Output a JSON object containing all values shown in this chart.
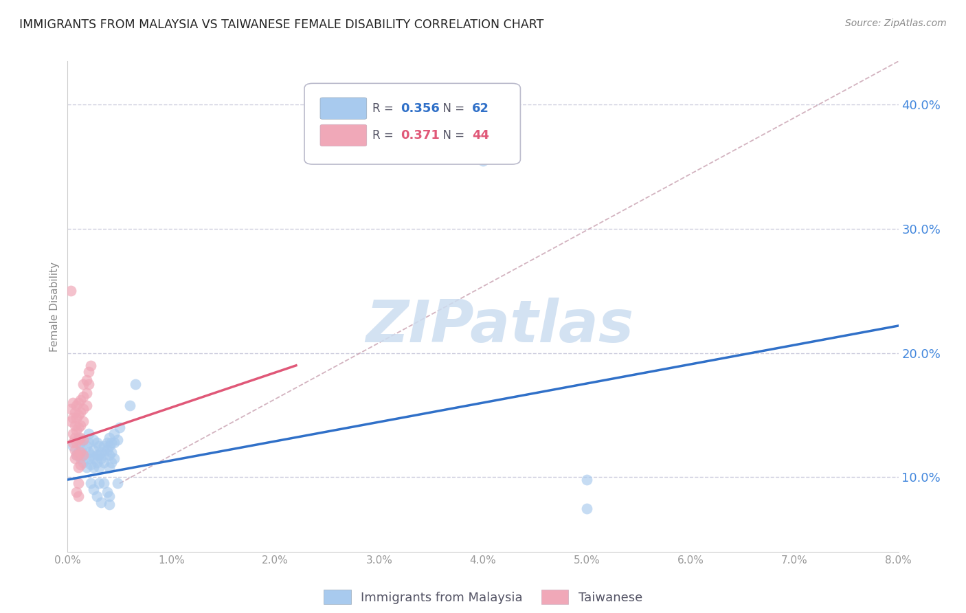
{
  "title": "IMMIGRANTS FROM MALAYSIA VS TAIWANESE FEMALE DISABILITY CORRELATION CHART",
  "source": "Source: ZipAtlas.com",
  "ylabel": "Female Disability",
  "legend_label_blue": "Immigrants from Malaysia",
  "legend_label_pink": "Taiwanese",
  "R_blue": 0.356,
  "N_blue": 62,
  "R_pink": 0.371,
  "N_pink": 44,
  "watermark": "ZIPatlas",
  "xlim": [
    0.0,
    0.08
  ],
  "ylim": [
    0.04,
    0.435
  ],
  "xticks": [
    0.0,
    0.01,
    0.02,
    0.03,
    0.04,
    0.05,
    0.06,
    0.07,
    0.08
  ],
  "xtick_labels": [
    "0.0%",
    "1.0%",
    "2.0%",
    "3.0%",
    "4.0%",
    "5.0%",
    "6.0%",
    "7.0%",
    "8.0%"
  ],
  "yticks_right": [
    0.1,
    0.2,
    0.3,
    0.4
  ],
  "ytick_labels_right": [
    "10.0%",
    "20.0%",
    "30.0%",
    "40.0%"
  ],
  "color_blue": "#a8caee",
  "color_pink": "#f0a8b8",
  "color_blue_line": "#3070c8",
  "color_pink_line": "#e05878",
  "background_color": "#ffffff",
  "grid_color": "#ccccdd",
  "title_color": "#222222",
  "right_axis_color": "#4488dd",
  "tick_color": "#999999",
  "blue_scatter": [
    [
      0.0005,
      0.125
    ],
    [
      0.0008,
      0.118
    ],
    [
      0.001,
      0.132
    ],
    [
      0.001,
      0.12
    ],
    [
      0.0012,
      0.115
    ],
    [
      0.0012,
      0.128
    ],
    [
      0.0013,
      0.122
    ],
    [
      0.0015,
      0.13
    ],
    [
      0.0015,
      0.112
    ],
    [
      0.0015,
      0.118
    ],
    [
      0.0018,
      0.125
    ],
    [
      0.0018,
      0.108
    ],
    [
      0.002,
      0.12
    ],
    [
      0.002,
      0.115
    ],
    [
      0.002,
      0.128
    ],
    [
      0.002,
      0.135
    ],
    [
      0.0022,
      0.11
    ],
    [
      0.0022,
      0.118
    ],
    [
      0.0022,
      0.095
    ],
    [
      0.0025,
      0.122
    ],
    [
      0.0025,
      0.115
    ],
    [
      0.0025,
      0.108
    ],
    [
      0.0025,
      0.13
    ],
    [
      0.0025,
      0.09
    ],
    [
      0.0028,
      0.118
    ],
    [
      0.0028,
      0.112
    ],
    [
      0.0028,
      0.128
    ],
    [
      0.0028,
      0.085
    ],
    [
      0.003,
      0.125
    ],
    [
      0.003,
      0.118
    ],
    [
      0.003,
      0.108
    ],
    [
      0.003,
      0.095
    ],
    [
      0.0032,
      0.12
    ],
    [
      0.0032,
      0.115
    ],
    [
      0.0032,
      0.08
    ],
    [
      0.0035,
      0.125
    ],
    [
      0.0035,
      0.118
    ],
    [
      0.0035,
      0.112
    ],
    [
      0.0035,
      0.095
    ],
    [
      0.0038,
      0.128
    ],
    [
      0.0038,
      0.122
    ],
    [
      0.0038,
      0.088
    ],
    [
      0.004,
      0.132
    ],
    [
      0.004,
      0.125
    ],
    [
      0.004,
      0.118
    ],
    [
      0.004,
      0.108
    ],
    [
      0.004,
      0.085
    ],
    [
      0.004,
      0.078
    ],
    [
      0.0042,
      0.128
    ],
    [
      0.0042,
      0.12
    ],
    [
      0.0042,
      0.112
    ],
    [
      0.0045,
      0.135
    ],
    [
      0.0045,
      0.128
    ],
    [
      0.0045,
      0.115
    ],
    [
      0.0048,
      0.13
    ],
    [
      0.0048,
      0.095
    ],
    [
      0.005,
      0.14
    ],
    [
      0.006,
      0.158
    ],
    [
      0.0065,
      0.175
    ],
    [
      0.04,
      0.355
    ],
    [
      0.05,
      0.098
    ],
    [
      0.05,
      0.075
    ]
  ],
  "pink_scatter": [
    [
      0.0003,
      0.155
    ],
    [
      0.0003,
      0.145
    ],
    [
      0.0005,
      0.16
    ],
    [
      0.0005,
      0.148
    ],
    [
      0.0005,
      0.135
    ],
    [
      0.0005,
      0.128
    ],
    [
      0.0007,
      0.152
    ],
    [
      0.0007,
      0.142
    ],
    [
      0.0007,
      0.132
    ],
    [
      0.0007,
      0.122
    ],
    [
      0.0007,
      0.115
    ],
    [
      0.0008,
      0.158
    ],
    [
      0.0008,
      0.148
    ],
    [
      0.0008,
      0.138
    ],
    [
      0.0008,
      0.128
    ],
    [
      0.0008,
      0.118
    ],
    [
      0.001,
      0.16
    ],
    [
      0.001,
      0.15
    ],
    [
      0.001,
      0.14
    ],
    [
      0.001,
      0.13
    ],
    [
      0.001,
      0.118
    ],
    [
      0.001,
      0.108
    ],
    [
      0.001,
      0.095
    ],
    [
      0.001,
      0.085
    ],
    [
      0.0012,
      0.162
    ],
    [
      0.0012,
      0.152
    ],
    [
      0.0012,
      0.142
    ],
    [
      0.0012,
      0.132
    ],
    [
      0.0012,
      0.12
    ],
    [
      0.0012,
      0.11
    ],
    [
      0.0015,
      0.175
    ],
    [
      0.0015,
      0.165
    ],
    [
      0.0015,
      0.155
    ],
    [
      0.0015,
      0.145
    ],
    [
      0.0015,
      0.13
    ],
    [
      0.0015,
      0.118
    ],
    [
      0.0018,
      0.178
    ],
    [
      0.0018,
      0.168
    ],
    [
      0.0018,
      0.158
    ],
    [
      0.002,
      0.185
    ],
    [
      0.002,
      0.175
    ],
    [
      0.0022,
      0.19
    ],
    [
      0.0003,
      0.25
    ],
    [
      0.0008,
      0.088
    ]
  ],
  "blue_line_x": [
    0.0,
    0.08
  ],
  "blue_line_y": [
    0.098,
    0.222
  ],
  "pink_line_x": [
    0.0,
    0.022
  ],
  "pink_line_y": [
    0.128,
    0.19
  ],
  "dashed_line_x": [
    0.005,
    0.08
  ],
  "dashed_line_y": [
    0.095,
    0.435
  ]
}
